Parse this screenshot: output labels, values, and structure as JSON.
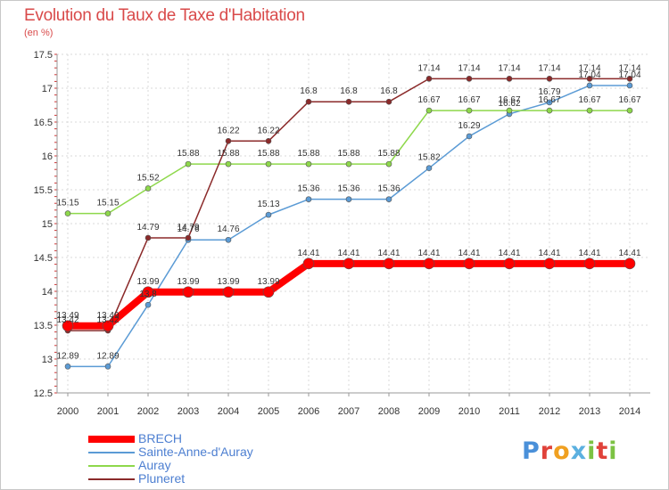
{
  "title": "Evolution du Taux de Taxe d'Habitation",
  "unit_label": "(en %)",
  "logo": {
    "letters": [
      "P",
      "r",
      "o",
      "x",
      "i",
      "t",
      "i"
    ],
    "colors": [
      "#4a90d9",
      "#e0423a",
      "#f0a020",
      "#5bb0e0",
      "#7cc243",
      "#e0423a",
      "#7cc243"
    ]
  },
  "chart_data": {
    "type": "line",
    "x": [
      "2000",
      "2001",
      "2002",
      "2003",
      "2004",
      "2005",
      "2006",
      "2007",
      "2008",
      "2009",
      "2010",
      "2011",
      "2012",
      "2013",
      "2014"
    ],
    "ylim": [
      12.5,
      17.5
    ],
    "yticks": [
      "12.5",
      "13",
      "13.5",
      "14",
      "14.5",
      "15",
      "15.5",
      "16",
      "16.5",
      "17",
      "17.5"
    ],
    "grid": true,
    "legend_position": "bottom-left",
    "series": [
      {
        "name": "BRECH",
        "color": "#ff0000",
        "values": [
          13.49,
          13.49,
          13.99,
          13.99,
          13.99,
          13.99,
          14.41,
          14.41,
          14.41,
          14.41,
          14.41,
          14.41,
          14.41,
          14.41,
          14.41
        ],
        "labels": [
          "13.49",
          "13.49",
          "13.99",
          "13.99",
          "13.99",
          "13.99",
          "14.41",
          "14.41",
          "14.41",
          "14.41",
          "14.41",
          "14.41",
          "14.41",
          "14.41",
          "14.41"
        ]
      },
      {
        "name": "Sainte-Anne-d'Auray",
        "color": "#5b9bd5",
        "values": [
          12.89,
          12.89,
          13.8,
          14.76,
          14.76,
          15.13,
          15.36,
          15.36,
          15.36,
          15.82,
          16.29,
          16.62,
          16.79,
          17.04,
          17.04
        ],
        "labels": [
          "12.89",
          "12.89",
          "13.8",
          "14.76",
          "14.76",
          "15.13",
          "15.36",
          "15.36",
          "15.36",
          "15.82",
          "16.29",
          "16.62",
          "16.79",
          "17.04",
          "17.04"
        ]
      },
      {
        "name": "Auray",
        "color": "#8ed84b",
        "values": [
          15.15,
          15.15,
          15.52,
          15.88,
          15.88,
          15.88,
          15.88,
          15.88,
          15.88,
          16.67,
          16.67,
          16.67,
          16.67,
          16.67,
          16.67
        ],
        "labels": [
          "15.15",
          "15.15",
          "15.52",
          "15.88",
          "15.88",
          "15.88",
          "15.88",
          "15.88",
          "15.88",
          "16.67",
          "16.67",
          "16.67",
          "16.67",
          "16.67",
          "16.67"
        ]
      },
      {
        "name": "Pluneret",
        "color": "#8b2a2a",
        "values": [
          13.42,
          13.42,
          14.79,
          14.79,
          16.22,
          16.22,
          16.8,
          16.8,
          16.8,
          17.14,
          17.14,
          17.14,
          17.14,
          17.14,
          17.14
        ],
        "labels": [
          "13.42",
          "13.42",
          "14.79",
          "14.79",
          "16.22",
          "16.22",
          "16.8",
          "16.8",
          "16.8",
          "17.14",
          "17.14",
          "17.14",
          "17.14",
          "17.14",
          "17.14"
        ]
      }
    ]
  }
}
